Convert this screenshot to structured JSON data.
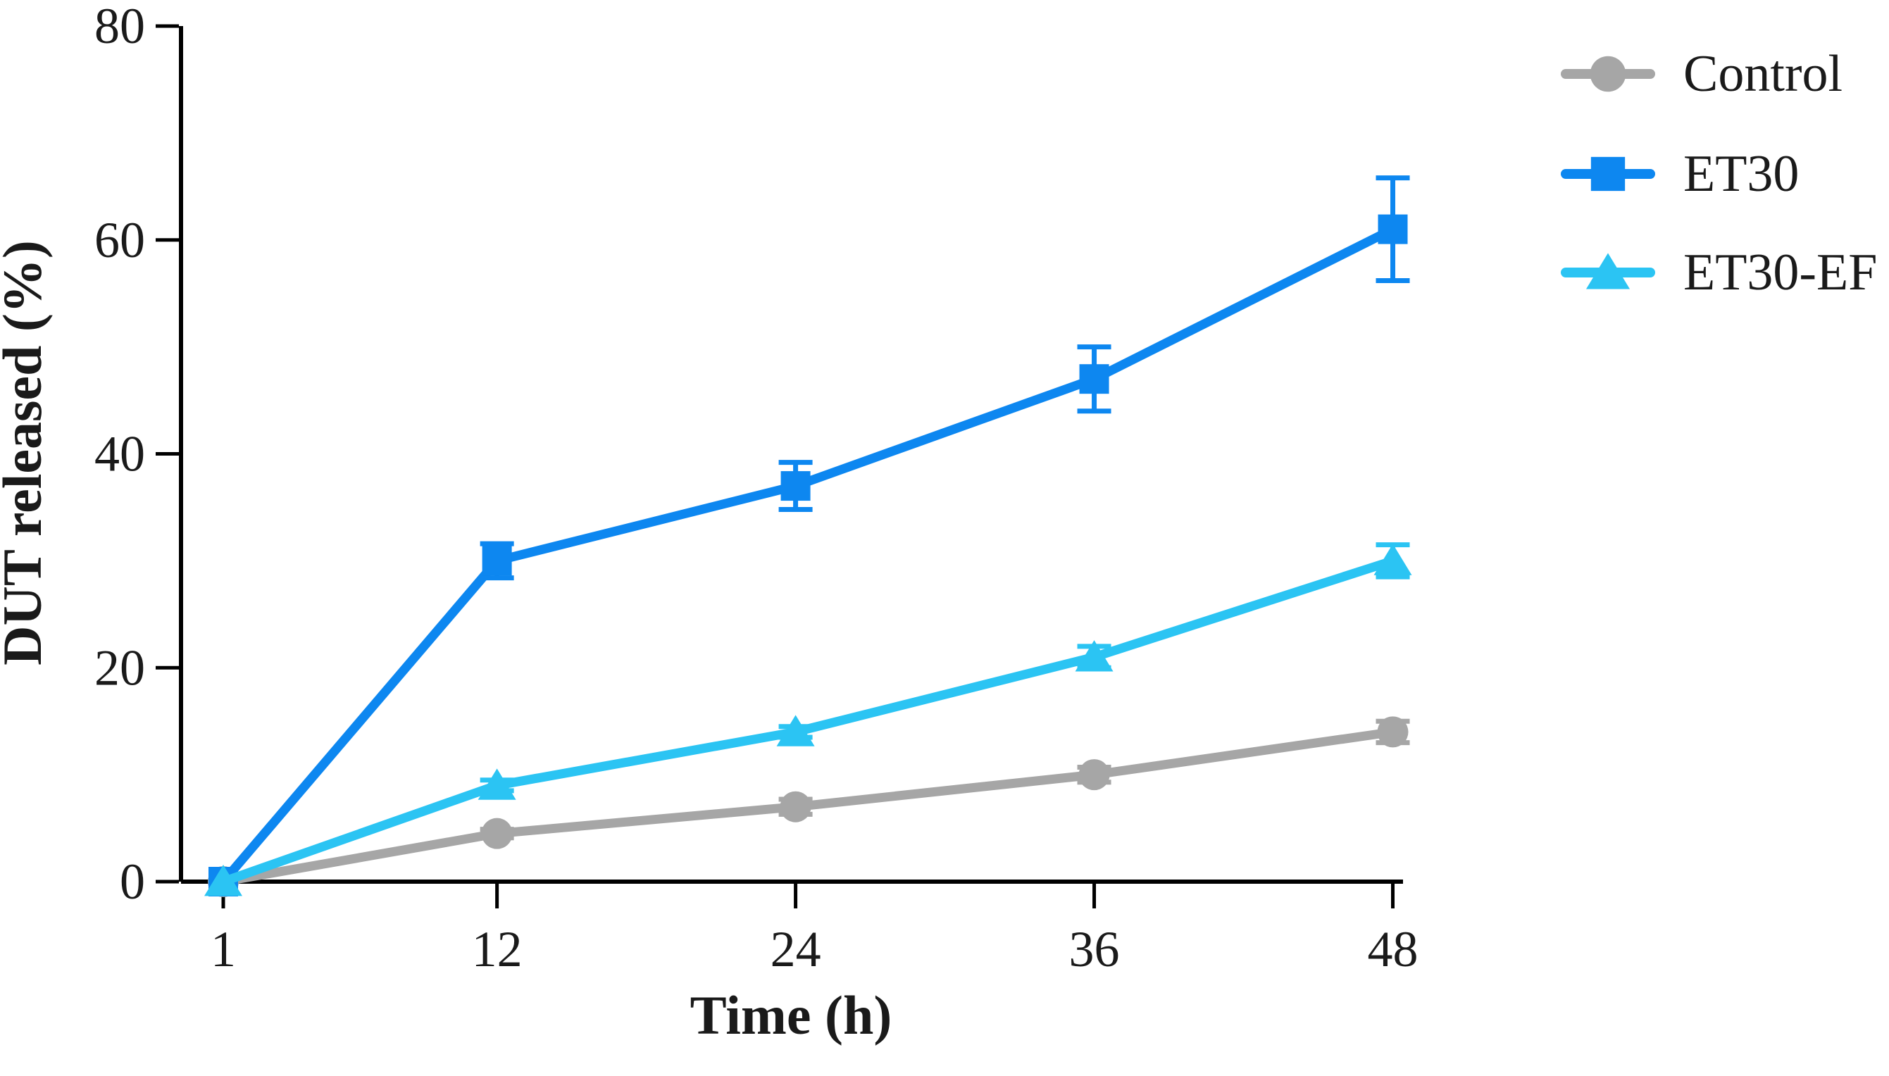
{
  "figure": {
    "background": "#ffffff",
    "text_color": "#1a1a1a"
  },
  "chart_data": {
    "type": "line",
    "title": "",
    "xlabel": "Time (h)",
    "ylabel": "DUT released (%)",
    "x": [
      1,
      12,
      24,
      36,
      48
    ],
    "x_ticks": [
      "1",
      "12",
      "24",
      "36",
      "48"
    ],
    "y_ticks": [
      "0",
      "20",
      "40",
      "60",
      "80"
    ],
    "xlim": [
      -0.8,
      48.5
    ],
    "ylim": [
      0,
      80
    ],
    "grid": false,
    "legend_position": "right-outside",
    "series": [
      {
        "name": "Control",
        "color": "#a6a6a6",
        "marker": "circle",
        "values": [
          0,
          4.5,
          7,
          10,
          14
        ],
        "errors": [
          0,
          0.4,
          0.7,
          0.7,
          1.0
        ]
      },
      {
        "name": "ET30",
        "color": "#0d87f0",
        "marker": "square",
        "values": [
          0,
          30,
          37,
          47,
          61
        ],
        "errors": [
          0,
          1.6,
          2.2,
          3.0,
          4.8
        ]
      },
      {
        "name": "ET30-EF",
        "color": "#2bc4f3",
        "marker": "triangle",
        "values": [
          0,
          9,
          14,
          21,
          30
        ],
        "errors": [
          0,
          0.5,
          0.5,
          1.0,
          1.5
        ]
      }
    ]
  }
}
